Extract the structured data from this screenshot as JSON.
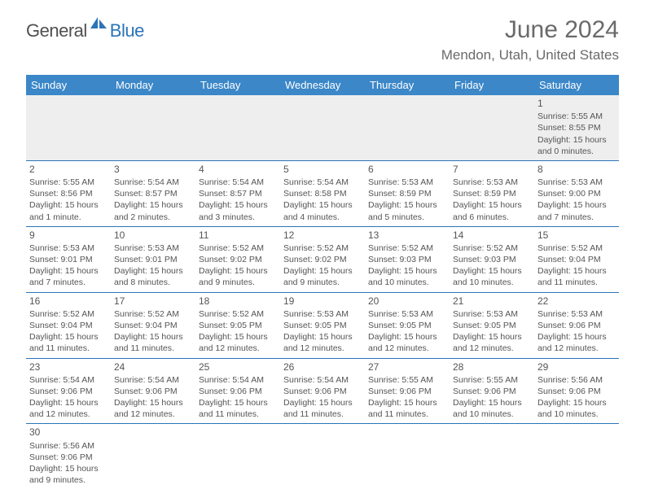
{
  "logo": {
    "general": "General",
    "blue": "Blue"
  },
  "title": "June 2024",
  "location": "Mendon, Utah, United States",
  "day_headers": [
    "Sunday",
    "Monday",
    "Tuesday",
    "Wednesday",
    "Thursday",
    "Friday",
    "Saturday"
  ],
  "colors": {
    "header_bg": "#3b87c8",
    "header_text": "#ffffff",
    "cell_border": "#2b74b8",
    "text": "#555555",
    "logo_blue": "#2b74b8",
    "first_row_bg": "#eeeeee"
  },
  "weeks": [
    [
      null,
      null,
      null,
      null,
      null,
      null,
      {
        "n": "1",
        "sr": "Sunrise: 5:55 AM",
        "ss": "Sunset: 8:55 PM",
        "d1": "Daylight: 15 hours",
        "d2": "and 0 minutes."
      }
    ],
    [
      {
        "n": "2",
        "sr": "Sunrise: 5:55 AM",
        "ss": "Sunset: 8:56 PM",
        "d1": "Daylight: 15 hours",
        "d2": "and 1 minute."
      },
      {
        "n": "3",
        "sr": "Sunrise: 5:54 AM",
        "ss": "Sunset: 8:57 PM",
        "d1": "Daylight: 15 hours",
        "d2": "and 2 minutes."
      },
      {
        "n": "4",
        "sr": "Sunrise: 5:54 AM",
        "ss": "Sunset: 8:57 PM",
        "d1": "Daylight: 15 hours",
        "d2": "and 3 minutes."
      },
      {
        "n": "5",
        "sr": "Sunrise: 5:54 AM",
        "ss": "Sunset: 8:58 PM",
        "d1": "Daylight: 15 hours",
        "d2": "and 4 minutes."
      },
      {
        "n": "6",
        "sr": "Sunrise: 5:53 AM",
        "ss": "Sunset: 8:59 PM",
        "d1": "Daylight: 15 hours",
        "d2": "and 5 minutes."
      },
      {
        "n": "7",
        "sr": "Sunrise: 5:53 AM",
        "ss": "Sunset: 8:59 PM",
        "d1": "Daylight: 15 hours",
        "d2": "and 6 minutes."
      },
      {
        "n": "8",
        "sr": "Sunrise: 5:53 AM",
        "ss": "Sunset: 9:00 PM",
        "d1": "Daylight: 15 hours",
        "d2": "and 7 minutes."
      }
    ],
    [
      {
        "n": "9",
        "sr": "Sunrise: 5:53 AM",
        "ss": "Sunset: 9:01 PM",
        "d1": "Daylight: 15 hours",
        "d2": "and 7 minutes."
      },
      {
        "n": "10",
        "sr": "Sunrise: 5:53 AM",
        "ss": "Sunset: 9:01 PM",
        "d1": "Daylight: 15 hours",
        "d2": "and 8 minutes."
      },
      {
        "n": "11",
        "sr": "Sunrise: 5:52 AM",
        "ss": "Sunset: 9:02 PM",
        "d1": "Daylight: 15 hours",
        "d2": "and 9 minutes."
      },
      {
        "n": "12",
        "sr": "Sunrise: 5:52 AM",
        "ss": "Sunset: 9:02 PM",
        "d1": "Daylight: 15 hours",
        "d2": "and 9 minutes."
      },
      {
        "n": "13",
        "sr": "Sunrise: 5:52 AM",
        "ss": "Sunset: 9:03 PM",
        "d1": "Daylight: 15 hours",
        "d2": "and 10 minutes."
      },
      {
        "n": "14",
        "sr": "Sunrise: 5:52 AM",
        "ss": "Sunset: 9:03 PM",
        "d1": "Daylight: 15 hours",
        "d2": "and 10 minutes."
      },
      {
        "n": "15",
        "sr": "Sunrise: 5:52 AM",
        "ss": "Sunset: 9:04 PM",
        "d1": "Daylight: 15 hours",
        "d2": "and 11 minutes."
      }
    ],
    [
      {
        "n": "16",
        "sr": "Sunrise: 5:52 AM",
        "ss": "Sunset: 9:04 PM",
        "d1": "Daylight: 15 hours",
        "d2": "and 11 minutes."
      },
      {
        "n": "17",
        "sr": "Sunrise: 5:52 AM",
        "ss": "Sunset: 9:04 PM",
        "d1": "Daylight: 15 hours",
        "d2": "and 11 minutes."
      },
      {
        "n": "18",
        "sr": "Sunrise: 5:52 AM",
        "ss": "Sunset: 9:05 PM",
        "d1": "Daylight: 15 hours",
        "d2": "and 12 minutes."
      },
      {
        "n": "19",
        "sr": "Sunrise: 5:53 AM",
        "ss": "Sunset: 9:05 PM",
        "d1": "Daylight: 15 hours",
        "d2": "and 12 minutes."
      },
      {
        "n": "20",
        "sr": "Sunrise: 5:53 AM",
        "ss": "Sunset: 9:05 PM",
        "d1": "Daylight: 15 hours",
        "d2": "and 12 minutes."
      },
      {
        "n": "21",
        "sr": "Sunrise: 5:53 AM",
        "ss": "Sunset: 9:05 PM",
        "d1": "Daylight: 15 hours",
        "d2": "and 12 minutes."
      },
      {
        "n": "22",
        "sr": "Sunrise: 5:53 AM",
        "ss": "Sunset: 9:06 PM",
        "d1": "Daylight: 15 hours",
        "d2": "and 12 minutes."
      }
    ],
    [
      {
        "n": "23",
        "sr": "Sunrise: 5:54 AM",
        "ss": "Sunset: 9:06 PM",
        "d1": "Daylight: 15 hours",
        "d2": "and 12 minutes."
      },
      {
        "n": "24",
        "sr": "Sunrise: 5:54 AM",
        "ss": "Sunset: 9:06 PM",
        "d1": "Daylight: 15 hours",
        "d2": "and 12 minutes."
      },
      {
        "n": "25",
        "sr": "Sunrise: 5:54 AM",
        "ss": "Sunset: 9:06 PM",
        "d1": "Daylight: 15 hours",
        "d2": "and 11 minutes."
      },
      {
        "n": "26",
        "sr": "Sunrise: 5:54 AM",
        "ss": "Sunset: 9:06 PM",
        "d1": "Daylight: 15 hours",
        "d2": "and 11 minutes."
      },
      {
        "n": "27",
        "sr": "Sunrise: 5:55 AM",
        "ss": "Sunset: 9:06 PM",
        "d1": "Daylight: 15 hours",
        "d2": "and 11 minutes."
      },
      {
        "n": "28",
        "sr": "Sunrise: 5:55 AM",
        "ss": "Sunset: 9:06 PM",
        "d1": "Daylight: 15 hours",
        "d2": "and 10 minutes."
      },
      {
        "n": "29",
        "sr": "Sunrise: 5:56 AM",
        "ss": "Sunset: 9:06 PM",
        "d1": "Daylight: 15 hours",
        "d2": "and 10 minutes."
      }
    ],
    [
      {
        "n": "30",
        "sr": "Sunrise: 5:56 AM",
        "ss": "Sunset: 9:06 PM",
        "d1": "Daylight: 15 hours",
        "d2": "and 9 minutes."
      },
      null,
      null,
      null,
      null,
      null,
      null
    ]
  ]
}
